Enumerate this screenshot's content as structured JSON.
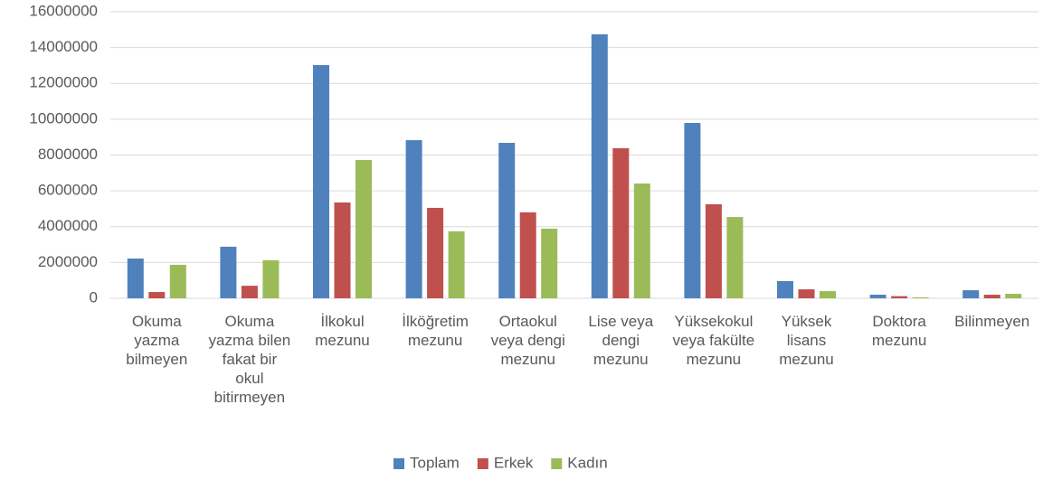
{
  "chart_data": {
    "type": "bar",
    "categories": [
      "Okuma yazma bilmeyen",
      "Okuma yazma bilen fakat bir okul bitirmeyen",
      "İlkokul mezunu",
      "İlköğretim mezunu",
      "Ortaokul veya dengi mezunu",
      "Lise veya dengi mezunu",
      "Yüksekokul veya fakülte mezunu",
      "Yüksek lisans mezunu",
      "Doktora mezunu",
      "Bilinmeyen"
    ],
    "series": [
      {
        "name": "Toplam",
        "color": "#4f81bd",
        "values": [
          2220000,
          2880000,
          13020000,
          8830000,
          8680000,
          14740000,
          9790000,
          960000,
          200000,
          450000
        ]
      },
      {
        "name": "Erkek",
        "color": "#c0504d",
        "values": [
          350000,
          700000,
          5350000,
          5050000,
          4800000,
          8380000,
          5250000,
          500000,
          120000,
          200000
        ]
      },
      {
        "name": "Kadın",
        "color": "#9bbb59",
        "values": [
          1870000,
          2120000,
          7720000,
          3740000,
          3890000,
          6410000,
          4540000,
          400000,
          50000,
          250000
        ]
      }
    ],
    "ylim": [
      0,
      16000000
    ],
    "yticks": [
      0,
      2000000,
      4000000,
      6000000,
      8000000,
      10000000,
      12000000,
      14000000,
      16000000
    ],
    "grid": true,
    "legend": "bottom"
  }
}
